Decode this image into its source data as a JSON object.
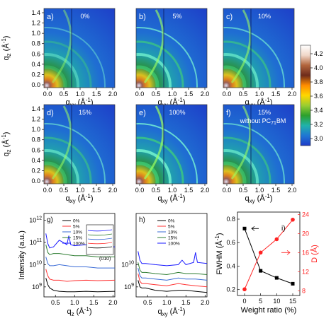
{
  "heatmaps": {
    "panels": [
      {
        "letter": "a)",
        "label": "0%",
        "arc_strength": 0.35
      },
      {
        "letter": "b)",
        "label": "5%",
        "arc_strength": 0.85
      },
      {
        "letter": "c)",
        "label": "10%",
        "arc_strength": 0.7
      },
      {
        "letter": "d)",
        "label": "15%",
        "arc_strength": 0.6
      },
      {
        "letter": "e)",
        "label": "100%",
        "arc_strength": 1.0
      },
      {
        "letter": "f)",
        "label": "15%",
        "label2": "without PC",
        "label2_sub": "71",
        "label2_end": "BM",
        "arc_strength": 0.7
      }
    ],
    "qxy_label": "q",
    "qxy_sub": "xy",
    "qxy_unit": " (Å",
    "qz_label": "q",
    "qz_sub": "z",
    "qz_unit": " (Å",
    "inv_exp": "-1",
    "x_ticks": [
      "0.0",
      "0.5",
      "1.0",
      "1.5",
      "2.0"
    ],
    "y_ticks": [
      "0.0",
      "0.2",
      "0.4",
      "0.6",
      "0.8",
      "1.0",
      "1.2",
      "1.4"
    ]
  },
  "colorbar": {
    "ticks": [
      "4.2",
      "4.0",
      "3.8",
      "3.6",
      "3.4",
      "3.2",
      "3.0"
    ],
    "colors": [
      "#ffffff",
      "#f0d7c8",
      "#b2643c",
      "#6e2b1c",
      "#ff8c00",
      "#ffd700",
      "#9acd32",
      "#2ca02c",
      "#20b2aa",
      "#1f77d4",
      "#1e3cc8"
    ]
  },
  "chart_data": [
    {
      "type": "line",
      "panel": "g)",
      "title": "",
      "xlabel": "q_z (Å^-1)",
      "ylabel": "Intensity (a.u.)",
      "x_ticks": [
        "0.5",
        "1.0",
        "1.5",
        "2.0"
      ],
      "y_ticks": [
        "10^9",
        "10^10",
        "10^11",
        "10^12"
      ],
      "yscale": "log",
      "xlim": [
        0.2,
        2.05
      ],
      "series": [
        {
          "name": "0%",
          "color": "#000000",
          "x": [
            0.25,
            0.3,
            0.35,
            0.45,
            0.6,
            0.8,
            1.0,
            1.3,
            1.6,
            2.05
          ],
          "y": [
            9.4,
            9.1,
            8.95,
            8.85,
            8.8,
            8.78,
            8.78,
            8.8,
            8.78,
            8.8
          ]
        },
        {
          "name": "5%",
          "color": "#ff3333",
          "x": [
            0.25,
            0.3,
            0.35,
            0.45,
            0.6,
            0.8,
            1.0,
            1.3,
            1.6,
            2.05
          ],
          "y": [
            9.8,
            9.5,
            9.35,
            9.3,
            9.3,
            9.25,
            9.28,
            9.3,
            9.28,
            9.3
          ]
        },
        {
          "name": "10%",
          "color": "#3a6bd6",
          "x": [
            0.25,
            0.3,
            0.35,
            0.45,
            0.6,
            0.8,
            1.0,
            1.3,
            1.6,
            2.05
          ],
          "y": [
            10.35,
            10.05,
            9.95,
            9.95,
            10.0,
            9.95,
            9.9,
            9.9,
            9.85,
            9.85
          ]
        },
        {
          "name": "15%",
          "color": "#2e7d32",
          "x": [
            0.25,
            0.3,
            0.35,
            0.45,
            0.6,
            0.8,
            1.0,
            1.3,
            1.6,
            2.05
          ],
          "y": [
            10.9,
            10.55,
            10.45,
            10.5,
            10.5,
            10.45,
            10.4,
            10.4,
            10.35,
            10.35
          ]
        },
        {
          "name": "100%",
          "color": "#1a1aff",
          "x": [
            0.25,
            0.3,
            0.35,
            0.45,
            0.6,
            0.8,
            0.85,
            0.9,
            1.0,
            1.3,
            1.6,
            2.05
          ],
          "y": [
            11.4,
            10.95,
            10.75,
            10.8,
            11.1,
            10.9,
            11.3,
            10.9,
            10.85,
            10.9,
            10.85,
            10.8
          ]
        }
      ],
      "legend": [
        "0%",
        "5%",
        "10%",
        "15%",
        "100%"
      ],
      "inset_label": "(010)"
    },
    {
      "type": "line",
      "panel": "h)",
      "title": "",
      "xlabel": "q_xy (Å^-1)",
      "ylabel": "",
      "x_ticks": [
        "0.5",
        "1.0",
        "1.5",
        "2.0"
      ],
      "y_ticks": [
        "10^9",
        "10^10"
      ],
      "yscale": "log",
      "xlim": [
        0.2,
        2.05
      ],
      "series": [
        {
          "name": "0%",
          "color": "#000000",
          "x": [
            0.25,
            0.3,
            0.35,
            0.45,
            0.7,
            1.0,
            1.3,
            1.5,
            1.75,
            2.05
          ],
          "y": [
            9.3,
            9.0,
            8.95,
            8.95,
            8.85,
            8.8,
            8.85,
            8.85,
            8.8,
            8.75
          ]
        },
        {
          "name": "5%",
          "color": "#ff3333",
          "x": [
            0.25,
            0.3,
            0.35,
            0.45,
            0.7,
            1.0,
            1.3,
            1.5,
            1.75,
            2.05
          ],
          "y": [
            9.6,
            9.25,
            9.15,
            9.15,
            9.1,
            9.05,
            9.15,
            9.1,
            9.05,
            9.0
          ]
        },
        {
          "name": "10%",
          "color": "#3a6bd6",
          "x": [
            0.25,
            0.3,
            0.35,
            0.45,
            0.7,
            1.0,
            1.3,
            1.5,
            1.75,
            2.05
          ],
          "y": [
            9.85,
            9.5,
            9.4,
            9.4,
            9.35,
            9.3,
            9.4,
            9.35,
            9.35,
            9.3
          ]
        },
        {
          "name": "15%",
          "color": "#2e7d32",
          "x": [
            0.25,
            0.3,
            0.35,
            0.45,
            0.7,
            1.0,
            1.3,
            1.5,
            1.75,
            2.05
          ],
          "y": [
            10.1,
            9.75,
            9.65,
            9.65,
            9.6,
            9.55,
            9.65,
            9.6,
            9.6,
            9.55
          ]
        },
        {
          "name": "100%",
          "color": "#1a1aff",
          "x": [
            0.25,
            0.3,
            0.35,
            0.45,
            0.7,
            1.0,
            1.3,
            1.4,
            1.5,
            1.7,
            1.75,
            1.8,
            2.05
          ],
          "y": [
            10.6,
            10.2,
            10.05,
            10.05,
            10.0,
            9.95,
            10.0,
            10.2,
            10.0,
            10.1,
            10.55,
            10.1,
            10.05
          ]
        }
      ],
      "legend": [
        "0%",
        "5%",
        "10%",
        "15%",
        "100%"
      ]
    },
    {
      "type": "line",
      "panel": "i)",
      "title": "",
      "xlabel": "Weight ratio (%)",
      "ylabel": "FWHM (Å^-1)",
      "ylabel_right": "D (Å)",
      "x_ticks": [
        "0",
        "5",
        "10",
        "15"
      ],
      "y_ticks": [
        "0.2",
        "0.4",
        "0.6",
        "0.8"
      ],
      "y_ticks_right": [
        "8",
        "12",
        "16",
        "20",
        "24"
      ],
      "ylim": [
        0.2,
        0.8
      ],
      "ylim_right": [
        7.5,
        24
      ],
      "series": [
        {
          "name": "FWHM",
          "axis": "left",
          "color": "#000000",
          "x": [
            0,
            5,
            10,
            15
          ],
          "y": [
            0.72,
            0.36,
            0.3,
            0.25
          ]
        },
        {
          "name": "D",
          "axis": "right",
          "color": "#ff2222",
          "x": [
            0,
            5,
            10,
            15
          ],
          "y": [
            8.3,
            16.0,
            18.8,
            22.9
          ]
        }
      ]
    }
  ]
}
